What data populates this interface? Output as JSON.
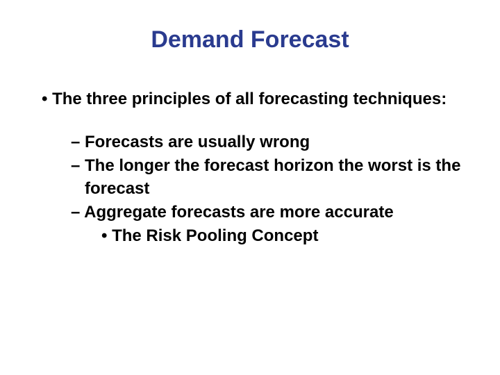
{
  "slide": {
    "title": "Demand Forecast",
    "title_color": "#2a3b8f",
    "title_fontsize": 34,
    "body_fontsize": 24,
    "body_color": "#000000",
    "background_color": "#ffffff",
    "bullets": {
      "l1_text": "The three principles of all forecasting techniques:",
      "l2_items": [
        "Forecasts are usually wrong",
        "The longer the forecast horizon the worst is the forecast",
        "Aggregate forecasts are more accurate"
      ],
      "l3_text": "The Risk Pooling Concept"
    }
  }
}
